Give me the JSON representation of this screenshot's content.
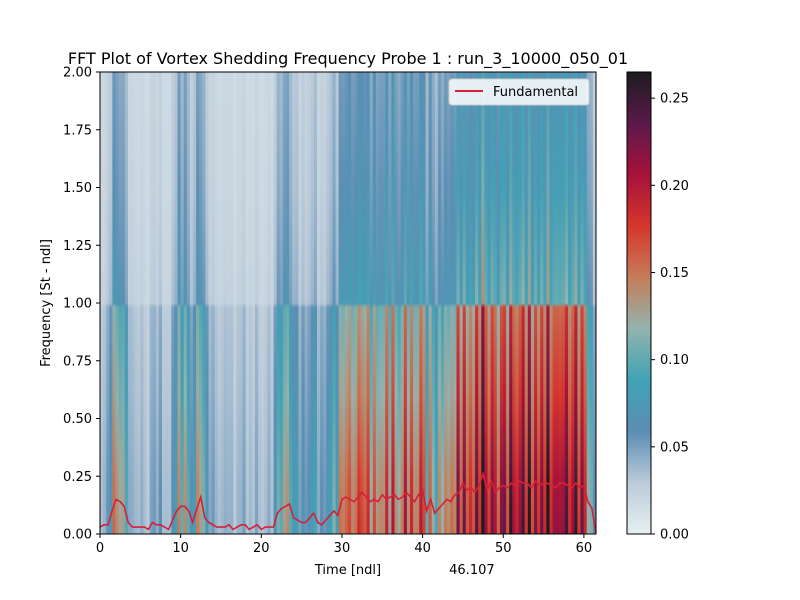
{
  "chart_data": {
    "type": "heatmap",
    "title": "FFT Plot of Vortex Shedding Frequency Probe 1 : run_3_10000_050_01",
    "xlabel": "Time [ndl]",
    "ylabel": "Frequency [St - ndl]",
    "xlim": [
      0,
      61.5
    ],
    "ylim": [
      0,
      2.0
    ],
    "x_ticks": [
      "0",
      "10",
      "20",
      "30",
      "40",
      "50",
      "60"
    ],
    "y_ticks": [
      "0.00",
      "0.25",
      "0.50",
      "0.75",
      "1.00",
      "1.25",
      "1.50",
      "1.75",
      "2.00"
    ],
    "colorbar": {
      "min": 0,
      "max": 0.265,
      "ticks": [
        "0.00",
        "0.05",
        "0.10",
        "0.15",
        "0.20",
        "0.25"
      ],
      "stops": [
        "#e6f0f2",
        "#bccbd9",
        "#5b8db3",
        "#3fa3b5",
        "#93b3ae",
        "#c57c59",
        "#d5362d",
        "#a6123a",
        "#5a1a4a",
        "#1c1b1f"
      ]
    },
    "legend": {
      "entries": [
        "Fundamental"
      ],
      "position": "top-right",
      "line_color": "#d62035"
    },
    "annotation": {
      "text": "46.107",
      "color": "#ff0000",
      "x": 46.107
    },
    "series": [
      {
        "name": "Fundamental",
        "x": [
          0,
          0.5,
          1,
          1.5,
          2,
          2.5,
          3,
          3.5,
          4,
          4.5,
          5,
          5.5,
          6,
          6.5,
          7,
          7.5,
          8,
          8.5,
          9,
          9.5,
          10,
          10.5,
          11,
          11.5,
          12,
          12.5,
          13,
          13.5,
          14,
          14.5,
          15,
          15.5,
          16,
          16.5,
          17,
          17.5,
          18,
          18.5,
          19,
          19.5,
          20,
          20.5,
          21,
          21.5,
          22,
          22.5,
          23,
          23.5,
          24,
          24.5,
          25,
          25.5,
          26,
          26.5,
          27,
          27.5,
          28,
          28.5,
          29,
          29.5,
          30,
          30.5,
          31,
          31.5,
          32,
          32.5,
          33,
          33.5,
          34,
          34.5,
          35,
          35.5,
          36,
          36.5,
          37,
          37.5,
          38,
          38.5,
          39,
          39.5,
          40,
          40.5,
          41,
          41.5,
          42,
          42.5,
          43,
          43.5,
          44,
          44.5,
          45,
          45.5,
          46,
          46.5,
          47,
          47.5,
          48,
          48.5,
          49,
          49.5,
          50,
          50.5,
          51,
          51.5,
          52,
          52.5,
          53,
          53.5,
          54,
          54.5,
          55,
          55.5,
          56,
          56.5,
          57,
          57.5,
          58,
          58.5,
          59,
          59.5,
          60,
          60.5,
          61,
          61.5
        ],
        "values": [
          0.03,
          0.04,
          0.04,
          0.1,
          0.15,
          0.14,
          0.12,
          0.05,
          0.03,
          0.03,
          0.03,
          0.03,
          0.02,
          0.05,
          0.04,
          0.04,
          0.03,
          0.02,
          0.06,
          0.1,
          0.12,
          0.12,
          0.1,
          0.05,
          0.11,
          0.16,
          0.07,
          0.05,
          0.04,
          0.03,
          0.03,
          0.03,
          0.04,
          0.02,
          0.03,
          0.04,
          0.04,
          0.02,
          0.03,
          0.04,
          0.02,
          0.03,
          0.03,
          0.03,
          0.09,
          0.11,
          0.12,
          0.13,
          0.07,
          0.06,
          0.05,
          0.05,
          0.07,
          0.09,
          0.05,
          0.04,
          0.06,
          0.08,
          0.1,
          0.08,
          0.15,
          0.16,
          0.15,
          0.14,
          0.16,
          0.18,
          0.16,
          0.14,
          0.15,
          0.14,
          0.17,
          0.15,
          0.16,
          0.17,
          0.15,
          0.16,
          0.18,
          0.16,
          0.14,
          0.17,
          0.19,
          0.1,
          0.15,
          0.09,
          0.11,
          0.13,
          0.15,
          0.14,
          0.17,
          0.18,
          0.22,
          0.19,
          0.2,
          0.18,
          0.21,
          0.26,
          0.19,
          0.23,
          0.18,
          0.2,
          0.21,
          0.2,
          0.22,
          0.21,
          0.23,
          0.22,
          0.22,
          0.2,
          0.23,
          0.21,
          0.22,
          0.22,
          0.21,
          0.2,
          0.22,
          0.22,
          0.21,
          0.2,
          0.22,
          0.2,
          0.21,
          0.14,
          0.11,
          0.0
        ]
      }
    ]
  }
}
